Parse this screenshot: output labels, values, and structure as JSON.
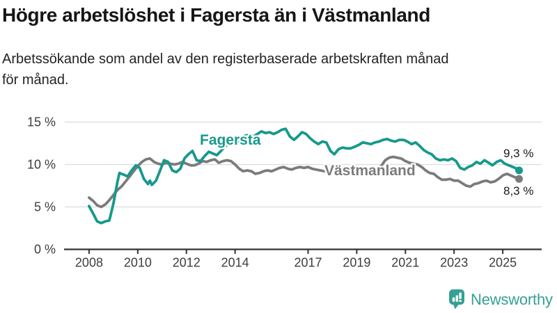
{
  "header": {
    "title": "Högre arbetslöshet i Fagersta än i Västmanland",
    "subtitle_lines": [
      "Arbetssökande som andel av den registerbaserade arbetskraften månad",
      "för månad."
    ]
  },
  "chart_data": {
    "type": "line",
    "title": "Högre arbetslöshet i Fagersta än i Västmanland",
    "subtitle": "Arbetssökande som andel av den registerbaserade arbetskraften månad för månad.",
    "unit": "%",
    "xlim": [
      2007.0,
      2026.6
    ],
    "ylim": [
      0,
      16.4
    ],
    "grid": "horizontal",
    "legend_position": "inline-labels",
    "x_ticks": [
      {
        "value": 2008,
        "label": "2008"
      },
      {
        "value": 2010,
        "label": "2010"
      },
      {
        "value": 2012,
        "label": "2012"
      },
      {
        "value": 2014,
        "label": "2014"
      },
      {
        "value": 2017,
        "label": "2017"
      },
      {
        "value": 2019,
        "label": "2019"
      },
      {
        "value": 2021,
        "label": "2021"
      },
      {
        "value": 2023,
        "label": "2023"
      },
      {
        "value": 2025,
        "label": "2025"
      }
    ],
    "y_ticks": [
      {
        "value": 0,
        "label": "0 %"
      },
      {
        "value": 5,
        "label": "5 %"
      },
      {
        "value": 10,
        "label": "10 %"
      },
      {
        "value": 15,
        "label": "15 %"
      }
    ],
    "series": [
      {
        "name": "Fagersta",
        "color": "#17998c",
        "end_value_label": "9,3 %",
        "end_value": 9.3,
        "points": [
          [
            2008.0,
            5.1
          ],
          [
            2008.17,
            4.2
          ],
          [
            2008.33,
            3.3
          ],
          [
            2008.5,
            3.1
          ],
          [
            2008.67,
            3.3
          ],
          [
            2008.83,
            3.4
          ],
          [
            2009.0,
            5.4
          ],
          [
            2009.17,
            8.0
          ],
          [
            2009.25,
            9.0
          ],
          [
            2009.42,
            8.8
          ],
          [
            2009.58,
            8.6
          ],
          [
            2009.75,
            9.3
          ],
          [
            2009.92,
            9.9
          ],
          [
            2010.08,
            9.6
          ],
          [
            2010.25,
            8.3
          ],
          [
            2010.42,
            7.7
          ],
          [
            2010.5,
            8.1
          ],
          [
            2010.58,
            7.6
          ],
          [
            2010.75,
            8.1
          ],
          [
            2010.92,
            9.3
          ],
          [
            2011.08,
            10.5
          ],
          [
            2011.25,
            10.3
          ],
          [
            2011.42,
            9.3
          ],
          [
            2011.58,
            9.1
          ],
          [
            2011.75,
            9.5
          ],
          [
            2011.92,
            10.7
          ],
          [
            2012.08,
            11.2
          ],
          [
            2012.25,
            11.6
          ],
          [
            2012.42,
            10.5
          ],
          [
            2012.58,
            10.4
          ],
          [
            2012.75,
            11.0
          ],
          [
            2012.92,
            11.5
          ],
          [
            2013.08,
            11.3
          ],
          [
            2013.25,
            11.1
          ],
          [
            2013.42,
            11.6
          ],
          [
            2013.58,
            12.1
          ],
          [
            2013.75,
            12.5
          ],
          [
            2013.92,
            12.8
          ],
          [
            2014.08,
            12.6
          ],
          [
            2014.25,
            13.0
          ],
          [
            2014.42,
            13.4
          ],
          [
            2014.58,
            13.5
          ],
          [
            2014.75,
            13.3
          ],
          [
            2014.92,
            13.6
          ],
          [
            2015.08,
            13.9
          ],
          [
            2015.25,
            13.7
          ],
          [
            2015.42,
            13.8
          ],
          [
            2015.58,
            13.6
          ],
          [
            2015.75,
            13.8
          ],
          [
            2015.92,
            14.1
          ],
          [
            2016.08,
            14.2
          ],
          [
            2016.25,
            13.3
          ],
          [
            2016.42,
            12.9
          ],
          [
            2016.58,
            13.3
          ],
          [
            2016.75,
            13.8
          ],
          [
            2016.92,
            13.6
          ],
          [
            2017.08,
            13.1
          ],
          [
            2017.25,
            12.7
          ],
          [
            2017.42,
            12.4
          ],
          [
            2017.58,
            12.7
          ],
          [
            2017.75,
            12.6
          ],
          [
            2017.92,
            11.6
          ],
          [
            2018.08,
            11.2
          ],
          [
            2018.25,
            11.8
          ],
          [
            2018.42,
            12.0
          ],
          [
            2018.58,
            11.9
          ],
          [
            2018.75,
            11.9
          ],
          [
            2018.92,
            12.1
          ],
          [
            2019.08,
            12.3
          ],
          [
            2019.25,
            12.6
          ],
          [
            2019.42,
            12.5
          ],
          [
            2019.58,
            12.4
          ],
          [
            2019.75,
            12.6
          ],
          [
            2019.92,
            12.7
          ],
          [
            2020.08,
            12.9
          ],
          [
            2020.25,
            13.0
          ],
          [
            2020.42,
            12.8
          ],
          [
            2020.58,
            12.7
          ],
          [
            2020.75,
            12.9
          ],
          [
            2020.92,
            12.9
          ],
          [
            2021.08,
            12.7
          ],
          [
            2021.25,
            12.4
          ],
          [
            2021.42,
            12.6
          ],
          [
            2021.58,
            12.2
          ],
          [
            2021.75,
            11.7
          ],
          [
            2021.92,
            11.4
          ],
          [
            2022.08,
            11.2
          ],
          [
            2022.25,
            10.7
          ],
          [
            2022.42,
            10.5
          ],
          [
            2022.58,
            10.6
          ],
          [
            2022.75,
            10.5
          ],
          [
            2022.92,
            10.7
          ],
          [
            2023.08,
            10.4
          ],
          [
            2023.25,
            9.6
          ],
          [
            2023.42,
            9.4
          ],
          [
            2023.58,
            9.7
          ],
          [
            2023.75,
            9.9
          ],
          [
            2023.92,
            10.3
          ],
          [
            2024.08,
            10.1
          ],
          [
            2024.25,
            10.5
          ],
          [
            2024.42,
            10.2
          ],
          [
            2024.58,
            9.9
          ],
          [
            2024.75,
            10.3
          ],
          [
            2024.92,
            10.5
          ],
          [
            2025.08,
            10.1
          ],
          [
            2025.25,
            9.9
          ],
          [
            2025.42,
            9.7
          ],
          [
            2025.58,
            9.5
          ],
          [
            2025.67,
            9.3
          ]
        ]
      },
      {
        "name": "Västmanland",
        "color": "#7b7b7b",
        "end_value_label": "8,3 %",
        "end_value": 8.3,
        "points": [
          [
            2008.0,
            6.1
          ],
          [
            2008.17,
            5.7
          ],
          [
            2008.33,
            5.2
          ],
          [
            2008.5,
            5.0
          ],
          [
            2008.67,
            5.3
          ],
          [
            2008.83,
            5.8
          ],
          [
            2009.0,
            6.4
          ],
          [
            2009.17,
            7.0
          ],
          [
            2009.33,
            7.4
          ],
          [
            2009.5,
            8.0
          ],
          [
            2009.67,
            8.6
          ],
          [
            2009.83,
            9.2
          ],
          [
            2010.0,
            9.8
          ],
          [
            2010.17,
            10.3
          ],
          [
            2010.33,
            10.6
          ],
          [
            2010.5,
            10.7
          ],
          [
            2010.67,
            10.3
          ],
          [
            2010.83,
            10.1
          ],
          [
            2011.0,
            10.0
          ],
          [
            2011.17,
            10.2
          ],
          [
            2011.33,
            10.1
          ],
          [
            2011.5,
            10.0
          ],
          [
            2011.67,
            10.1
          ],
          [
            2011.83,
            10.3
          ],
          [
            2012.0,
            10.1
          ],
          [
            2012.17,
            9.9
          ],
          [
            2012.33,
            9.9
          ],
          [
            2012.5,
            10.1
          ],
          [
            2012.67,
            10.4
          ],
          [
            2012.83,
            10.3
          ],
          [
            2013.0,
            10.5
          ],
          [
            2013.17,
            10.6
          ],
          [
            2013.33,
            10.2
          ],
          [
            2013.5,
            10.4
          ],
          [
            2013.67,
            10.5
          ],
          [
            2013.83,
            10.4
          ],
          [
            2014.0,
            10.0
          ],
          [
            2014.17,
            9.5
          ],
          [
            2014.33,
            9.2
          ],
          [
            2014.5,
            9.3
          ],
          [
            2014.67,
            9.2
          ],
          [
            2014.83,
            8.9
          ],
          [
            2015.0,
            9.0
          ],
          [
            2015.17,
            9.2
          ],
          [
            2015.33,
            9.3
          ],
          [
            2015.5,
            9.2
          ],
          [
            2015.67,
            9.4
          ],
          [
            2015.83,
            9.6
          ],
          [
            2016.0,
            9.7
          ],
          [
            2016.17,
            9.5
          ],
          [
            2016.33,
            9.4
          ],
          [
            2016.5,
            9.6
          ],
          [
            2016.67,
            9.7
          ],
          [
            2016.83,
            9.6
          ],
          [
            2017.0,
            9.7
          ],
          [
            2017.17,
            9.5
          ],
          [
            2017.33,
            9.4
          ],
          [
            2017.5,
            9.3
          ],
          [
            2017.67,
            9.2
          ],
          [
            2017.83,
            9.2
          ],
          [
            2018.0,
            9.2
          ],
          [
            2018.17,
            9.1
          ],
          [
            2018.33,
            9.2
          ],
          [
            2018.5,
            9.2
          ],
          [
            2018.67,
            9.1
          ],
          [
            2018.83,
            9.2
          ],
          [
            2019.0,
            9.2
          ],
          [
            2019.17,
            9.3
          ],
          [
            2019.33,
            9.3
          ],
          [
            2019.5,
            9.2
          ],
          [
            2019.67,
            9.3
          ],
          [
            2019.83,
            9.4
          ],
          [
            2020.0,
            9.8
          ],
          [
            2020.17,
            10.5
          ],
          [
            2020.33,
            10.8
          ],
          [
            2020.5,
            10.9
          ],
          [
            2020.67,
            10.8
          ],
          [
            2020.83,
            10.7
          ],
          [
            2021.0,
            10.4
          ],
          [
            2021.17,
            10.2
          ],
          [
            2021.33,
            10.1
          ],
          [
            2021.5,
            10.0
          ],
          [
            2021.67,
            9.7
          ],
          [
            2021.83,
            9.3
          ],
          [
            2022.0,
            9.0
          ],
          [
            2022.17,
            8.9
          ],
          [
            2022.33,
            8.5
          ],
          [
            2022.5,
            8.2
          ],
          [
            2022.67,
            8.2
          ],
          [
            2022.83,
            8.3
          ],
          [
            2023.0,
            8.1
          ],
          [
            2023.17,
            8.1
          ],
          [
            2023.33,
            7.8
          ],
          [
            2023.5,
            7.5
          ],
          [
            2023.67,
            7.4
          ],
          [
            2023.83,
            7.7
          ],
          [
            2024.0,
            7.8
          ],
          [
            2024.17,
            8.0
          ],
          [
            2024.33,
            8.1
          ],
          [
            2024.5,
            7.9
          ],
          [
            2024.67,
            8.0
          ],
          [
            2024.83,
            8.3
          ],
          [
            2025.0,
            8.7
          ],
          [
            2025.17,
            8.9
          ],
          [
            2025.33,
            8.7
          ],
          [
            2025.42,
            8.6
          ],
          [
            2025.58,
            8.4
          ],
          [
            2025.67,
            8.3
          ]
        ]
      }
    ]
  },
  "annotations": {
    "fagersta_label": "Fagersta",
    "vastmanland_label": "Västmanland",
    "fagersta_end_value": "9,3 %",
    "vastmanland_end_value": "8,3 %"
  },
  "footer": {
    "logo_text": "Newsworthy",
    "logo_color": "#35a094"
  },
  "colors": {
    "fagersta_line": "#17998c",
    "vastmanland_line": "#7b7b7b",
    "gridline": "#dcdcdc",
    "axis": "#333333"
  }
}
